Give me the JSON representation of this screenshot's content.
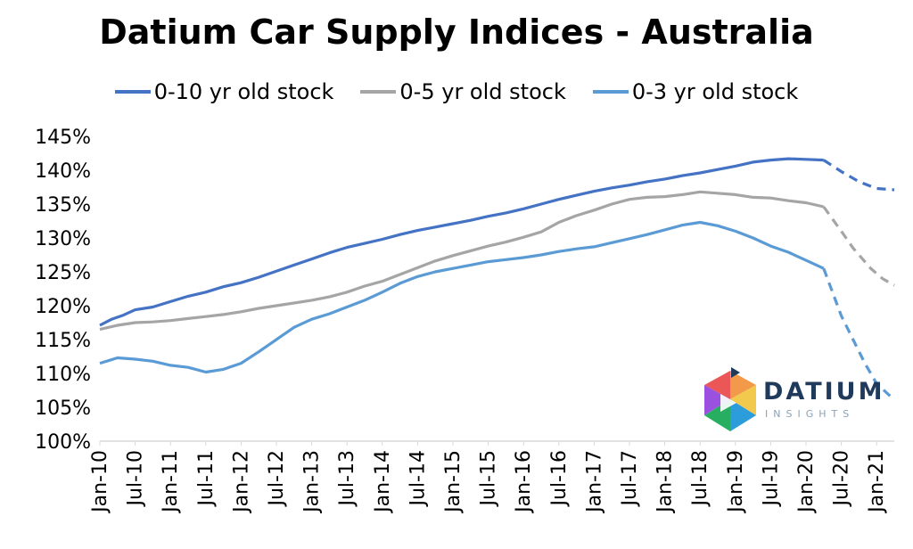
{
  "chart_data": {
    "type": "line",
    "title": "Datium Car Supply Indices - Australia",
    "xlabel": "",
    "ylabel": "",
    "ylim": [
      100,
      145
    ],
    "y_ticks": [
      "145%",
      "140%",
      "135%",
      "130%",
      "125%",
      "120%",
      "115%",
      "110%",
      "105%",
      "100%"
    ],
    "x_ticks": [
      "Jan-10",
      "Jul-10",
      "Jan-11",
      "Jul-11",
      "Jan-12",
      "Jul-12",
      "Jan-13",
      "Jul-13",
      "Jan-14",
      "Jul-14",
      "Jan-15",
      "Jul-15",
      "Jan-16",
      "Jul-16",
      "Jan-17",
      "Jul-17",
      "Jan-18",
      "Jul-18",
      "Jan-19",
      "Jul-19",
      "Jan-20",
      "Jul-20",
      "Jan-21"
    ],
    "x_months": [
      0,
      6,
      12,
      18,
      24,
      30,
      36,
      42,
      48,
      54,
      60,
      66,
      72,
      78,
      84,
      90,
      96,
      102,
      108,
      114,
      120,
      126,
      132
    ],
    "forecast_from_month": 124,
    "series": [
      {
        "name": "0-10 yr old stock",
        "color": "#4472c4",
        "points": [
          [
            0,
            117.1
          ],
          [
            2,
            118.0
          ],
          [
            4,
            118.6
          ],
          [
            6,
            119.4
          ],
          [
            9,
            119.8
          ],
          [
            12,
            120.6
          ],
          [
            15,
            121.4
          ],
          [
            18,
            122.0
          ],
          [
            21,
            122.8
          ],
          [
            24,
            123.4
          ],
          [
            27,
            124.2
          ],
          [
            30,
            125.1
          ],
          [
            33,
            126.0
          ],
          [
            36,
            126.9
          ],
          [
            39,
            127.8
          ],
          [
            42,
            128.6
          ],
          [
            45,
            129.2
          ],
          [
            48,
            129.8
          ],
          [
            51,
            130.5
          ],
          [
            54,
            131.1
          ],
          [
            57,
            131.6
          ],
          [
            60,
            132.1
          ],
          [
            63,
            132.6
          ],
          [
            66,
            133.2
          ],
          [
            69,
            133.7
          ],
          [
            72,
            134.3
          ],
          [
            75,
            135.0
          ],
          [
            78,
            135.7
          ],
          [
            81,
            136.3
          ],
          [
            84,
            136.9
          ],
          [
            87,
            137.4
          ],
          [
            90,
            137.8
          ],
          [
            93,
            138.3
          ],
          [
            96,
            138.7
          ],
          [
            99,
            139.2
          ],
          [
            102,
            139.6
          ],
          [
            105,
            140.1
          ],
          [
            108,
            140.6
          ],
          [
            111,
            141.2
          ],
          [
            114,
            141.5
          ],
          [
            117,
            141.7
          ],
          [
            120,
            141.6
          ],
          [
            123,
            141.5
          ],
          [
            126,
            139.8
          ],
          [
            129,
            138.3
          ],
          [
            132,
            137.3
          ],
          [
            135,
            137.1
          ]
        ]
      },
      {
        "name": "0-5 yr old stock",
        "color": "#a5a5a5",
        "points": [
          [
            0,
            116.5
          ],
          [
            3,
            117.1
          ],
          [
            6,
            117.5
          ],
          [
            9,
            117.6
          ],
          [
            12,
            117.8
          ],
          [
            15,
            118.1
          ],
          [
            18,
            118.4
          ],
          [
            21,
            118.7
          ],
          [
            24,
            119.1
          ],
          [
            27,
            119.6
          ],
          [
            30,
            120.0
          ],
          [
            33,
            120.4
          ],
          [
            36,
            120.8
          ],
          [
            39,
            121.3
          ],
          [
            42,
            122.0
          ],
          [
            45,
            122.9
          ],
          [
            48,
            123.6
          ],
          [
            51,
            124.6
          ],
          [
            54,
            125.6
          ],
          [
            57,
            126.6
          ],
          [
            60,
            127.4
          ],
          [
            63,
            128.1
          ],
          [
            66,
            128.8
          ],
          [
            69,
            129.4
          ],
          [
            72,
            130.1
          ],
          [
            75,
            130.9
          ],
          [
            78,
            132.3
          ],
          [
            81,
            133.3
          ],
          [
            84,
            134.1
          ],
          [
            87,
            135.0
          ],
          [
            90,
            135.7
          ],
          [
            93,
            136.0
          ],
          [
            96,
            136.1
          ],
          [
            99,
            136.4
          ],
          [
            102,
            136.8
          ],
          [
            105,
            136.6
          ],
          [
            108,
            136.4
          ],
          [
            111,
            136.0
          ],
          [
            114,
            135.9
          ],
          [
            117,
            135.5
          ],
          [
            120,
            135.2
          ],
          [
            123,
            134.6
          ],
          [
            126,
            131.0
          ],
          [
            128,
            128.5
          ],
          [
            131,
            125.5
          ],
          [
            133,
            124.0
          ],
          [
            135,
            123.0
          ]
        ]
      },
      {
        "name": "0-3 yr old stock",
        "color": "#5b9bd5",
        "points": [
          [
            0,
            111.5
          ],
          [
            3,
            112.3
          ],
          [
            6,
            112.1
          ],
          [
            9,
            111.8
          ],
          [
            12,
            111.2
          ],
          [
            15,
            110.9
          ],
          [
            18,
            110.2
          ],
          [
            21,
            110.6
          ],
          [
            24,
            111.5
          ],
          [
            27,
            113.2
          ],
          [
            30,
            115.0
          ],
          [
            33,
            116.8
          ],
          [
            36,
            118.0
          ],
          [
            39,
            118.8
          ],
          [
            42,
            119.8
          ],
          [
            45,
            120.8
          ],
          [
            48,
            122.0
          ],
          [
            51,
            123.3
          ],
          [
            54,
            124.3
          ],
          [
            57,
            125.0
          ],
          [
            60,
            125.5
          ],
          [
            63,
            126.0
          ],
          [
            66,
            126.5
          ],
          [
            69,
            126.8
          ],
          [
            72,
            127.1
          ],
          [
            75,
            127.5
          ],
          [
            78,
            128.0
          ],
          [
            81,
            128.4
          ],
          [
            84,
            128.7
          ],
          [
            87,
            129.3
          ],
          [
            90,
            129.9
          ],
          [
            93,
            130.5
          ],
          [
            96,
            131.2
          ],
          [
            99,
            131.9
          ],
          [
            102,
            132.3
          ],
          [
            105,
            131.8
          ],
          [
            108,
            131.0
          ],
          [
            111,
            130.0
          ],
          [
            114,
            128.8
          ],
          [
            117,
            127.9
          ],
          [
            120,
            126.7
          ],
          [
            123,
            125.5
          ],
          [
            126,
            118.5
          ],
          [
            128,
            115.0
          ],
          [
            130,
            111.5
          ],
          [
            132,
            108.5
          ],
          [
            135,
            106.1
          ]
        ]
      }
    ],
    "legend_position": "top",
    "grid": false
  },
  "logo": {
    "name": "DATIUM",
    "tagline": "INSIGHTS"
  }
}
